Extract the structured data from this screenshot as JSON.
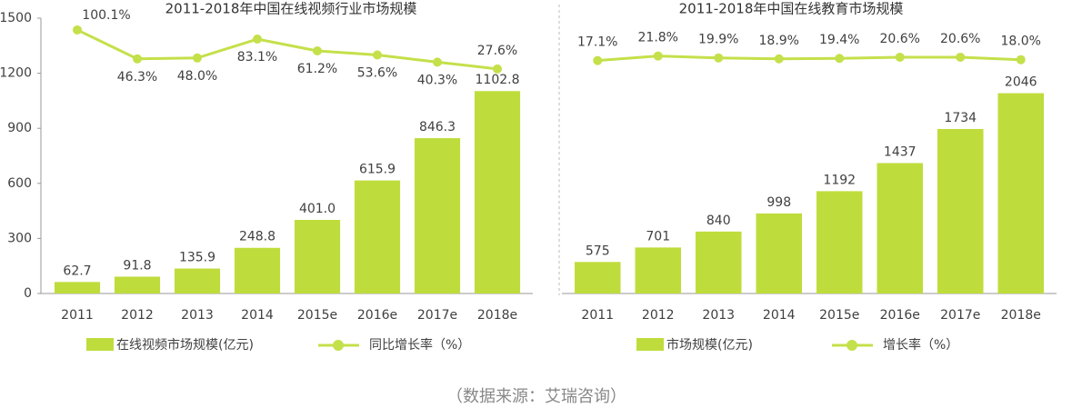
{
  "chart_data": [
    {
      "type": "bar-line",
      "title": "2011-2018年中国在线视频行业市场规模",
      "categories": [
        "2011",
        "2012",
        "2013",
        "2014",
        "2015e",
        "2016e",
        "2017e",
        "2018e"
      ],
      "series": [
        {
          "name": "在线视频市场规模(亿元)",
          "color": "#bedd3c",
          "type": "bar",
          "values": [
            62.7,
            91.8,
            135.9,
            248.8,
            401.0,
            615.9,
            846.3,
            1102.8
          ],
          "value_labels": [
            "62.7",
            "91.8",
            "135.9",
            "248.8",
            "401.0",
            "615.9",
            "846.3",
            "1102.8"
          ]
        },
        {
          "name": "同比增长率（%）",
          "color": "#c4e04a",
          "type": "line",
          "axis": "y2",
          "values": [
            100.1,
            46.3,
            48.0,
            83.1,
            61.2,
            53.6,
            40.3,
            27.6
          ],
          "value_labels": [
            "100.1%",
            "46.3%",
            "48.0%",
            "83.1%",
            "61.2%",
            "53.6%",
            "40.3%",
            "27.6%"
          ]
        }
      ],
      "ylim": [
        0,
        1500
      ],
      "yticks": [
        0,
        300,
        600,
        900,
        1200,
        1500
      ],
      "y2lim": [
        -390,
        122
      ]
    },
    {
      "type": "bar-line",
      "title": "2011-2018年中国在线教育市场规模",
      "categories": [
        "2011",
        "2012",
        "2013",
        "2014",
        "2015e",
        "2016e",
        "2017e",
        "2018e"
      ],
      "series": [
        {
          "name": "市场规模(亿元)",
          "color": "#bedd3c",
          "type": "bar",
          "values": [
            575,
            701,
            840,
            998,
            1192,
            1437,
            1734,
            2046
          ]
        },
        {
          "name": "增长率（%）",
          "color": "#c4e04a",
          "type": "line",
          "axis": "y2",
          "values": [
            17.1,
            21.8,
            19.9,
            18.9,
            19.4,
            20.6,
            20.6,
            18.0
          ],
          "value_labels": [
            "17.1%",
            "21.8%",
            "19.9%",
            "18.9%",
            "19.4%",
            "20.6%",
            "20.6%",
            "18.0%"
          ]
        }
      ],
      "ylim": [
        300,
        2700
      ],
      "y2lim": [
        -224,
        61
      ]
    }
  ],
  "source": "（数据来源：艾瑞咨询）"
}
